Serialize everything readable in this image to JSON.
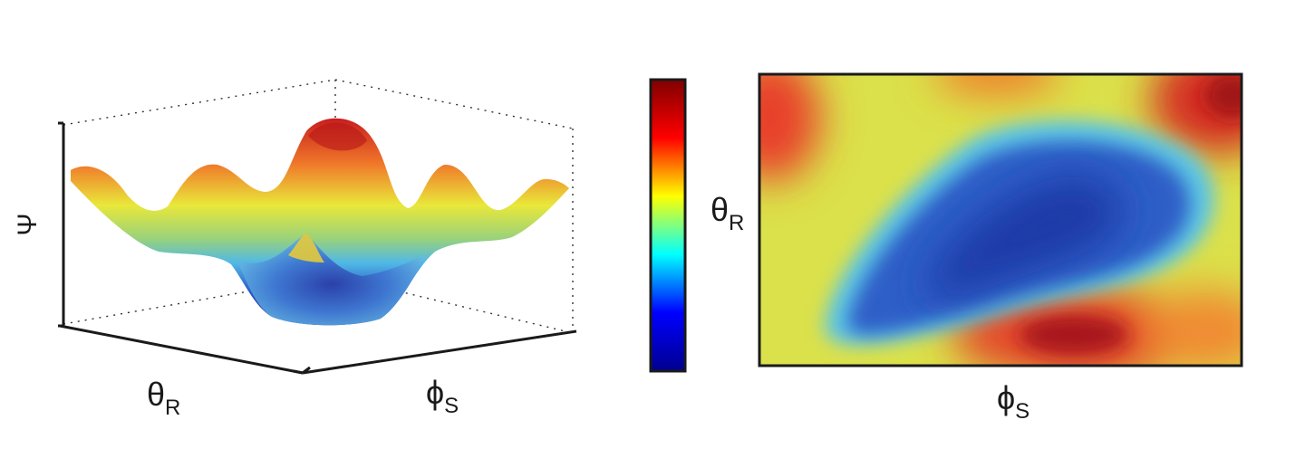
{
  "chart_data": [
    {
      "type": "surface",
      "zlabel": "Ψ",
      "xlabel_symbol": "θ",
      "xlabel_subscript": "R",
      "ylabel_symbol": "ϕ",
      "ylabel_subscript": "S",
      "colormap": "jet",
      "grid": false,
      "box": "dotted"
    },
    {
      "type": "colorbar",
      "colormap": "jet",
      "colors": [
        "#00008f",
        "#0000ff",
        "#00ffff",
        "#ffff00",
        "#ff0000",
        "#800000"
      ]
    },
    {
      "type": "heatmap",
      "xlabel_symbol": "ϕ",
      "xlabel_subscript": "S",
      "ylabel_symbol": "θ",
      "ylabel_subscript": "R",
      "colormap": "jet",
      "grid": false
    }
  ]
}
